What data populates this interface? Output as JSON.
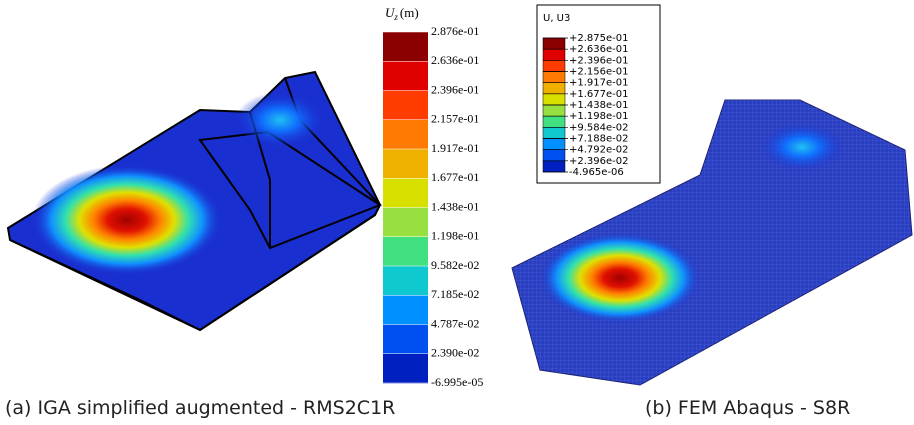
{
  "left": {
    "colorbar": {
      "title": {
        "symbol": "U",
        "subscript": "z",
        "unit": "(m)"
      },
      "labels": [
        "2.876e-01",
        "2.636e-01",
        "2.396e-01",
        "2.157e-01",
        "1.917e-01",
        "1.677e-01",
        "1.438e-01",
        "1.198e-01",
        "9.582e-02",
        "7.185e-02",
        "4.787e-02",
        "2.390e-02",
        "-6.995e-05"
      ]
    },
    "caption": "(a) IGA simplified augmented - RMS2C1R"
  },
  "right": {
    "legend": {
      "title": "U, U3",
      "labels": [
        "+2.875e-01",
        "+2.636e-01",
        "+2.396e-01",
        "+2.156e-01",
        "+1.917e-01",
        "+1.677e-01",
        "+1.438e-01",
        "+1.198e-01",
        "+9.584e-02",
        "+7.188e-02",
        "+4.792e-02",
        "+2.396e-02",
        "-4.965e-06"
      ]
    },
    "caption": "(b) FEM Abaqus - S8R"
  }
}
